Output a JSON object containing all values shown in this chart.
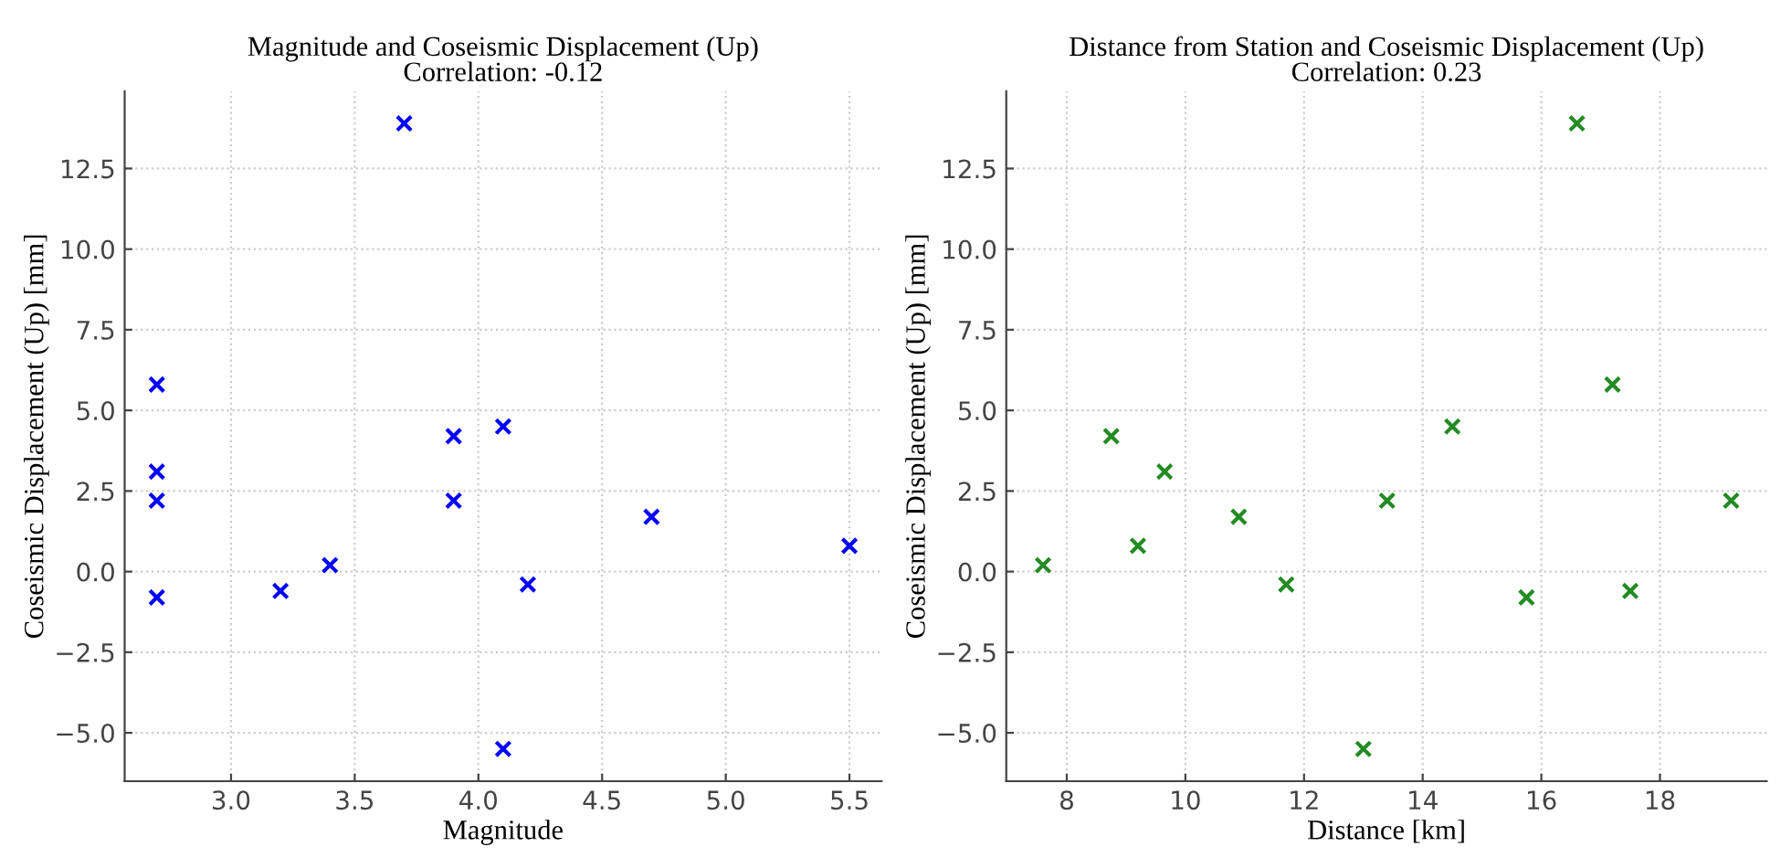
{
  "chart_data": [
    {
      "type": "scatter",
      "title": "Magnitude and Coseismic Displacement (Up)\nCorrelation: -0.12",
      "xlabel": "Magnitude",
      "ylabel": "Coseismic Displacement (Up) [mm]",
      "series": [
        {
          "color": "#0000ff",
          "x": [
            2.7,
            2.7,
            2.7,
            2.7,
            3.2,
            3.4,
            3.7,
            3.9,
            3.9,
            4.1,
            4.1,
            4.2,
            4.7,
            5.5
          ],
          "values": [
            5.8,
            3.1,
            2.2,
            -0.8,
            -0.6,
            0.2,
            13.9,
            4.2,
            2.2,
            4.5,
            -5.5,
            -0.4,
            1.7,
            0.8
          ]
        }
      ],
      "xlim": [
        2.57,
        5.63
      ],
      "xticks": [
        {
          "value": 3,
          "label": "3.0"
        },
        3.5,
        {
          "value": 4,
          "label": "4.0"
        },
        4.5,
        {
          "value": 5,
          "label": "5.0"
        },
        5.5
      ],
      "ylim": [
        -6.5,
        14.9
      ],
      "yticks": [
        {
          "value": -5,
          "label": "−5.0"
        },
        -2.5,
        {
          "value": 0,
          "label": "0.0"
        },
        2.5,
        {
          "value": 5,
          "label": "5.0"
        },
        7.5,
        {
          "value": 10,
          "label": "10.0"
        },
        12.5
      ],
      "grid": true,
      "marker": "cross"
    },
    {
      "type": "scatter",
      "title": "Distance from Station and Coseismic Displacement (Up)\nCorrelation: 0.23",
      "xlabel": "Distance [km]",
      "ylabel": "Coseismic Displacement (Up) [mm]",
      "series": [
        {
          "color": "#228b22",
          "x": [
            7.6,
            8.75,
            9.2,
            9.65,
            10.9,
            11.7,
            13.0,
            13.4,
            14.5,
            15.75,
            16.6,
            17.2,
            17.5,
            19.2
          ],
          "values": [
            0.2,
            4.2,
            0.8,
            3.1,
            1.7,
            -0.4,
            -5.5,
            2.2,
            4.5,
            -0.8,
            13.9,
            5.8,
            -0.6,
            2.2
          ]
        }
      ],
      "xlim": [
        6.98,
        19.8
      ],
      "xticks": [
        8,
        10,
        12,
        14,
        16,
        18
      ],
      "ylim": [
        -6.5,
        14.9
      ],
      "yticks": [
        {
          "value": -5,
          "label": "−5.0"
        },
        -2.5,
        {
          "value": 0,
          "label": "0.0"
        },
        2.5,
        {
          "value": 5,
          "label": "5.0"
        },
        7.5,
        {
          "value": 10,
          "label": "10.0"
        },
        12.5
      ],
      "grid": true,
      "marker": "cross"
    }
  ]
}
